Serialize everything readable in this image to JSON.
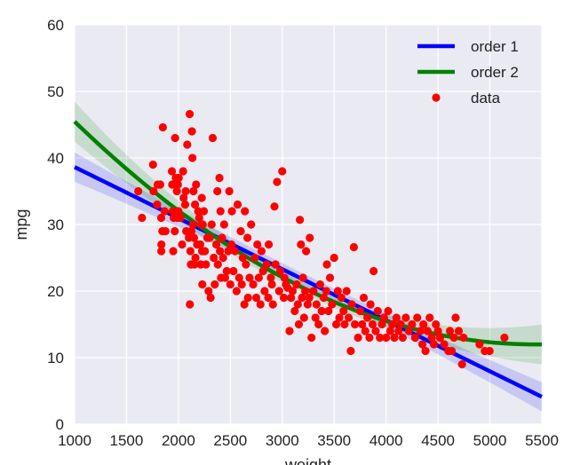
{
  "chart_data": {
    "type": "scatter",
    "title": "",
    "xlabel": "weight",
    "ylabel": "mpg",
    "xlim": [
      1000,
      5500
    ],
    "ylim": [
      0,
      60
    ],
    "xticks": [
      1000,
      1500,
      2000,
      2500,
      3000,
      3500,
      4000,
      4500,
      5000,
      5500
    ],
    "yticks": [
      0,
      10,
      20,
      30,
      40,
      50,
      60
    ],
    "grid": true,
    "legend_position": "top-right",
    "colors": {
      "background": "#eaeaf2",
      "grid": "#ffffff",
      "order1": "#0000ff",
      "order2": "#008000",
      "data": "#ff0000"
    },
    "legend": [
      {
        "label": "order 1",
        "kind": "line",
        "color": "#0000ff"
      },
      {
        "label": "order 2",
        "kind": "line",
        "color": "#008000"
      },
      {
        "label": "data",
        "kind": "marker",
        "color": "#ff0000"
      }
    ],
    "fits": [
      {
        "name": "order 1",
        "kind": "linear",
        "coeffs": [
          46.3,
          -0.00767
        ],
        "band": 0.9,
        "band_wide": 2.2
      },
      {
        "name": "order 2",
        "kind": "quadratic",
        "coeffs": [
          62.26,
          -0.01849,
          1.7e-06
        ],
        "band": 0.8,
        "band_wide": 3.0
      }
    ],
    "series": [
      {
        "name": "data",
        "kind": "scatter",
        "points": [
          [
            1613,
            35
          ],
          [
            1649,
            31
          ],
          [
            1755,
            39
          ],
          [
            1760,
            35
          ],
          [
            1795,
            33
          ],
          [
            1800,
            36
          ],
          [
            1825,
            36
          ],
          [
            1834,
            31
          ],
          [
            1835,
            26
          ],
          [
            1836,
            27
          ],
          [
            1845,
            29
          ],
          [
            1850,
            44.6
          ],
          [
            1867,
            32
          ],
          [
            1875,
            29
          ],
          [
            1937,
            38
          ],
          [
            1940,
            36
          ],
          [
            1945,
            32
          ],
          [
            1950,
            26
          ],
          [
            1955,
            31
          ],
          [
            1963,
            36
          ],
          [
            1965,
            29
          ],
          [
            1968,
            43
          ],
          [
            1975,
            37
          ],
          [
            1980,
            36
          ],
          [
            1985,
            35
          ],
          [
            1990,
            31
          ],
          [
            1995,
            36
          ],
          [
            2000,
            32
          ],
          [
            2003,
            37
          ],
          [
            2020,
            31
          ],
          [
            2035,
            27
          ],
          [
            2045,
            38
          ],
          [
            2050,
            34
          ],
          [
            2065,
            33
          ],
          [
            2070,
            35
          ],
          [
            2075,
            29
          ],
          [
            2085,
            42
          ],
          [
            2100,
            28
          ],
          [
            2108,
            46.6
          ],
          [
            2110,
            18
          ],
          [
            2115,
            26
          ],
          [
            2120,
            24
          ],
          [
            2125,
            29
          ],
          [
            2130,
            44
          ],
          [
            2135,
            40
          ],
          [
            2140,
            30
          ],
          [
            2145,
            35
          ],
          [
            2150,
            28
          ],
          [
            2155,
            24
          ],
          [
            2160,
            33
          ],
          [
            2164,
            25
          ],
          [
            2170,
            36
          ],
          [
            2180,
            27
          ],
          [
            2190,
            32
          ],
          [
            2200,
            31
          ],
          [
            2210,
            27
          ],
          [
            2215,
            24
          ],
          [
            2220,
            30
          ],
          [
            2225,
            34
          ],
          [
            2228,
            26
          ],
          [
            2230,
            21
          ],
          [
            2234,
            30
          ],
          [
            2245,
            32
          ],
          [
            2255,
            26
          ],
          [
            2265,
            24
          ],
          [
            2278,
            28
          ],
          [
            2290,
            20
          ],
          [
            2300,
            28
          ],
          [
            2310,
            19
          ],
          [
            2320,
            30
          ],
          [
            2330,
            43
          ],
          [
            2340,
            25
          ],
          [
            2350,
            21
          ],
          [
            2365,
            27
          ],
          [
            2375,
            35
          ],
          [
            2380,
            24
          ],
          [
            2395,
            37
          ],
          [
            2400,
            26
          ],
          [
            2405,
            32
          ],
          [
            2410,
            22
          ],
          [
            2420,
            28
          ],
          [
            2430,
            25
          ],
          [
            2440,
            30
          ],
          [
            2450,
            22
          ],
          [
            2465,
            23
          ],
          [
            2480,
            26
          ],
          [
            2490,
            35
          ],
          [
            2500,
            21
          ],
          [
            2510,
            27
          ],
          [
            2515,
            32
          ],
          [
            2530,
            23
          ],
          [
            2545,
            26
          ],
          [
            2560,
            20
          ],
          [
            2570,
            33
          ],
          [
            2585,
            22
          ],
          [
            2600,
            29
          ],
          [
            2610,
            21
          ],
          [
            2620,
            25
          ],
          [
            2635,
            18
          ],
          [
            2640,
            32
          ],
          [
            2650,
            24
          ],
          [
            2665,
            28
          ],
          [
            2670,
            19
          ],
          [
            2685,
            22
          ],
          [
            2700,
            30
          ],
          [
            2720,
            21
          ],
          [
            2735,
            25
          ],
          [
            2750,
            19
          ],
          [
            2760,
            27
          ],
          [
            2774,
            22
          ],
          [
            2790,
            18
          ],
          [
            2800,
            26
          ],
          [
            2815,
            23
          ],
          [
            2830,
            20
          ],
          [
            2850,
            24
          ],
          [
            2865,
            19
          ],
          [
            2870,
            27
          ],
          [
            2890,
            22
          ],
          [
            2900,
            21
          ],
          [
            2910,
            18
          ],
          [
            2925,
            32.7
          ],
          [
            2935,
            24
          ],
          [
            2950,
            36.4
          ],
          [
            2970,
            20
          ],
          [
            2980,
            23
          ],
          [
            3000,
            38
          ],
          [
            3015,
            19
          ],
          [
            3021,
            22
          ],
          [
            3035,
            21
          ],
          [
            3050,
            20.5
          ],
          [
            3070,
            14
          ],
          [
            3085,
            19
          ],
          [
            3100,
            20
          ],
          [
            3120,
            17
          ],
          [
            3139,
            21
          ],
          [
            3150,
            18
          ],
          [
            3160,
            15
          ],
          [
            3170,
            30.7
          ],
          [
            3180,
            27
          ],
          [
            3190,
            19
          ],
          [
            3200,
            22
          ],
          [
            3210,
            16
          ],
          [
            3221,
            20
          ],
          [
            3230,
            26
          ],
          [
            3245,
            18
          ],
          [
            3260,
            19
          ],
          [
            3265,
            28
          ],
          [
            3282,
            13
          ],
          [
            3300,
            20
          ],
          [
            3320,
            16
          ],
          [
            3330,
            18
          ],
          [
            3350,
            15
          ],
          [
            3365,
            21
          ],
          [
            3380,
            17
          ],
          [
            3400,
            19
          ],
          [
            3410,
            14
          ],
          [
            3425,
            20
          ],
          [
            3430,
            24
          ],
          [
            3445,
            17
          ],
          [
            3460,
            22
          ],
          [
            3480,
            18
          ],
          [
            3500,
            25
          ],
          [
            3520,
            15
          ],
          [
            3535,
            20
          ],
          [
            3550,
            16
          ],
          [
            3570,
            19
          ],
          [
            3590,
            17
          ],
          [
            3600,
            15
          ],
          [
            3620,
            20
          ],
          [
            3640,
            16
          ],
          [
            3660,
            11
          ],
          [
            3670,
            18
          ],
          [
            3690,
            26.6
          ],
          [
            3700,
            15
          ],
          [
            3730,
            13
          ],
          [
            3750,
            17
          ],
          [
            3770,
            15
          ],
          [
            3785,
            19
          ],
          [
            3800,
            14
          ],
          [
            3820,
            16
          ],
          [
            3840,
            13
          ],
          [
            3850,
            18
          ],
          [
            3870,
            15
          ],
          [
            3880,
            23
          ],
          [
            3900,
            14
          ],
          [
            3920,
            17
          ],
          [
            3940,
            13
          ],
          [
            3960,
            15
          ],
          [
            3980,
            16
          ],
          [
            4000,
            13
          ],
          [
            4020,
            17
          ],
          [
            4040,
            14
          ],
          [
            4060,
            15
          ],
          [
            4080,
            13
          ],
          [
            4100,
            16
          ],
          [
            4120,
            14
          ],
          [
            4140,
            15
          ],
          [
            4160,
            13
          ],
          [
            4190,
            16
          ],
          [
            4220,
            14
          ],
          [
            4250,
            15
          ],
          [
            4280,
            13
          ],
          [
            4300,
            16
          ],
          [
            4330,
            14
          ],
          [
            4350,
            12
          ],
          [
            4360,
            15
          ],
          [
            4380,
            11
          ],
          [
            4400,
            14
          ],
          [
            4420,
            16
          ],
          [
            4440,
            13
          ],
          [
            4460,
            12
          ],
          [
            4480,
            15
          ],
          [
            4500,
            14
          ],
          [
            4520,
            13
          ],
          [
            4560,
            12
          ],
          [
            4600,
            11
          ],
          [
            4615,
            14
          ],
          [
            4633,
            11
          ],
          [
            4654,
            13
          ],
          [
            4670,
            16
          ],
          [
            4700,
            14
          ],
          [
            4732,
            9
          ],
          [
            4746,
            13
          ],
          [
            4900,
            12
          ],
          [
            4951,
            11
          ],
          [
            4997,
            11
          ],
          [
            5140,
            13
          ]
        ]
      }
    ]
  }
}
